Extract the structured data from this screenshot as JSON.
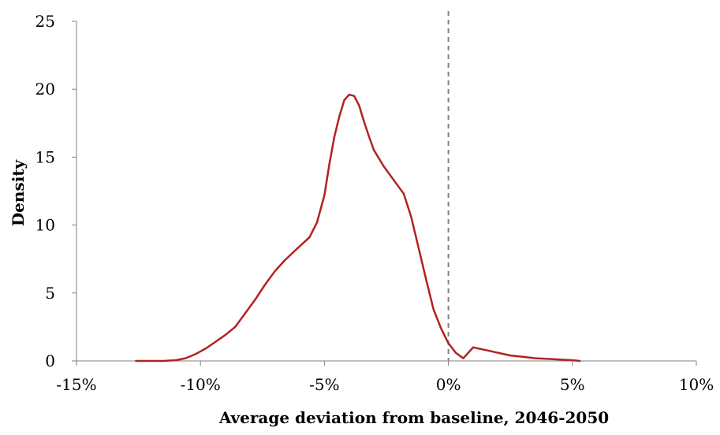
{
  "chart_data": {
    "type": "line",
    "title": "",
    "xlabel": "Average deviation from baseline, 2046-2050",
    "ylabel": "Density",
    "xlim": [
      -15,
      10
    ],
    "ylim": [
      0,
      25
    ],
    "x_ticks": [
      -15,
      -10,
      -5,
      0,
      5,
      10
    ],
    "x_tick_labels": [
      "-15%",
      "-10%",
      "-5%",
      "0%",
      "5%",
      "10%"
    ],
    "y_ticks": [
      0,
      5,
      10,
      15,
      20,
      25
    ],
    "y_tick_labels": [
      "0",
      "5",
      "10",
      "15",
      "20",
      "25"
    ],
    "grid": false,
    "series": [
      {
        "color": "#b22222",
        "x": [
          -12.6,
          -11.5,
          -11.0,
          -10.6,
          -10.2,
          -9.8,
          -9.4,
          -9.0,
          -8.6,
          -8.2,
          -7.8,
          -7.4,
          -7.0,
          -6.6,
          -6.2,
          -5.9,
          -5.6,
          -5.3,
          -5.0,
          -4.8,
          -4.6,
          -4.4,
          -4.2,
          -4.0,
          -3.8,
          -3.6,
          -3.4,
          -3.2,
          -3.0,
          -2.6,
          -2.2,
          -1.8,
          -1.5,
          -1.2,
          -0.9,
          -0.6,
          -0.3,
          0.0,
          0.3,
          0.6,
          1.0,
          1.5,
          2.0,
          2.5,
          3.0,
          3.5,
          4.0,
          4.5,
          5.0,
          5.3
        ],
        "y": [
          0.0,
          0.0,
          0.05,
          0.2,
          0.5,
          0.9,
          1.4,
          1.9,
          2.5,
          3.5,
          4.5,
          5.6,
          6.6,
          7.4,
          8.1,
          8.6,
          9.1,
          10.2,
          12.2,
          14.5,
          16.5,
          18.0,
          19.2,
          19.6,
          19.5,
          18.8,
          17.6,
          16.5,
          15.5,
          14.3,
          13.3,
          12.3,
          10.6,
          8.3,
          6.0,
          3.8,
          2.4,
          1.3,
          0.6,
          0.2,
          1.0,
          0.8,
          0.6,
          0.4,
          0.3,
          0.2,
          0.15,
          0.1,
          0.05,
          0.0
        ]
      }
    ],
    "reference_lines": [
      {
        "axis": "x",
        "value": 0,
        "style": "dashed",
        "color": "#808080"
      }
    ]
  }
}
